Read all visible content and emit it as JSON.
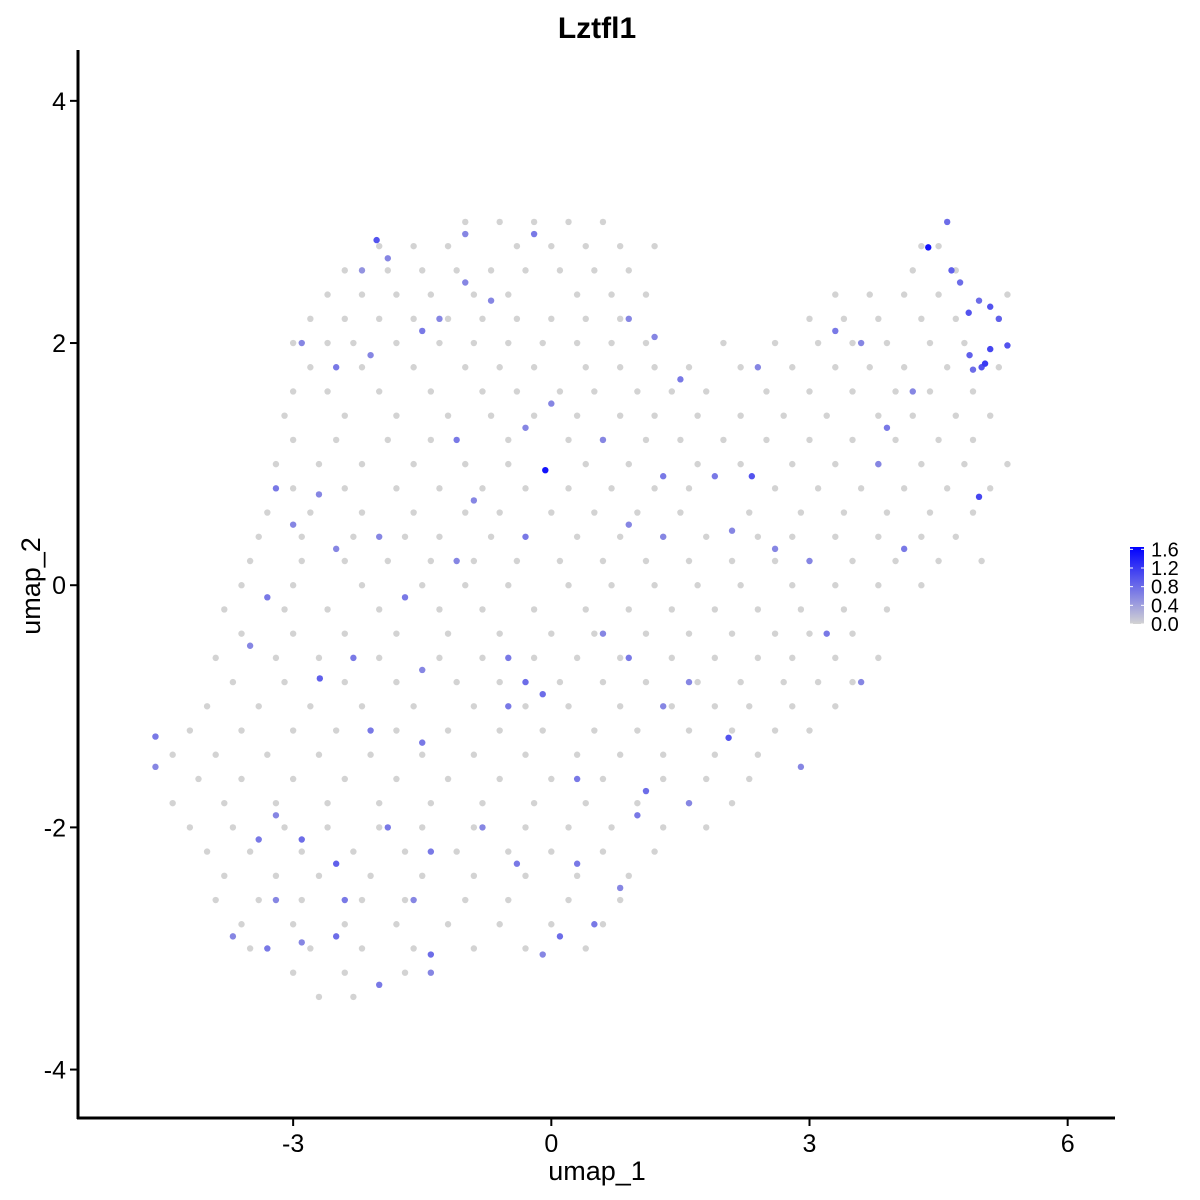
{
  "chart_data": {
    "type": "scatter",
    "title": "Lztfl1",
    "xlabel": "umap_1",
    "ylabel": "umap_2",
    "xlim": [
      -5.5,
      6.55
    ],
    "ylim": [
      -4.4,
      4.42
    ],
    "x_ticks": [
      -3,
      0,
      3,
      6
    ],
    "x_tick_labels": [
      "-3",
      "0",
      "3",
      "6"
    ],
    "y_ticks": [
      -4,
      -2,
      0,
      2,
      4
    ],
    "y_tick_labels": [
      "-4",
      "-2",
      "0",
      "2",
      "4"
    ],
    "grid": false,
    "colors": {
      "low": "#d3d3d3",
      "high": "#0000ff"
    },
    "legend": {
      "position": "right",
      "type": "colorbar",
      "range": [
        0,
        1.65
      ],
      "ticks": [
        0.0,
        0.4,
        0.8,
        1.2,
        1.6
      ],
      "tick_labels": [
        "0.0",
        "0.4",
        "0.8",
        "1.2",
        "1.6"
      ]
    },
    "zero_expression_rows": [
      {
        "y": 3.0,
        "x": [
          -1.0,
          -0.6,
          -0.2,
          0.2,
          0.6
        ]
      },
      {
        "y": 2.8,
        "x": [
          -2.0,
          -1.6,
          -1.2,
          -0.4,
          0.0,
          0.4,
          0.8,
          1.2,
          4.3,
          4.5
        ]
      },
      {
        "y": 2.6,
        "x": [
          -2.4,
          -1.9,
          -1.5,
          -1.1,
          -0.7,
          -0.3,
          0.1,
          0.5,
          0.9,
          4.2,
          4.7
        ]
      },
      {
        "y": 2.4,
        "x": [
          -2.6,
          -2.2,
          -1.8,
          -1.4,
          -0.9,
          -0.5,
          0.3,
          0.7,
          1.1,
          3.3,
          3.7,
          4.1,
          4.5,
          5.3
        ]
      },
      {
        "y": 2.2,
        "x": [
          -2.8,
          -2.4,
          -2.0,
          -1.6,
          -1.2,
          -0.8,
          -0.4,
          0.0,
          0.4,
          0.8,
          3.0,
          3.4,
          3.8,
          4.3,
          4.7,
          5.2
        ]
      },
      {
        "y": 2.0,
        "x": [
          -3.0,
          -2.6,
          -2.3,
          -1.8,
          -1.3,
          -0.9,
          -0.5,
          -0.1,
          0.3,
          0.7,
          1.1,
          2.0,
          2.6,
          3.1,
          3.5,
          3.9,
          4.4,
          4.8
        ]
      },
      {
        "y": 1.8,
        "x": [
          -2.8,
          -2.2,
          -1.6,
          -1.0,
          -0.6,
          -0.2,
          0.4,
          0.8,
          1.2,
          1.6,
          2.2,
          2.8,
          3.3,
          3.7,
          4.1,
          4.6,
          5.2
        ]
      },
      {
        "y": 1.6,
        "x": [
          -3.0,
          -2.6,
          -2.0,
          -1.4,
          -0.8,
          -0.4,
          0.1,
          0.5,
          1.0,
          1.4,
          1.8,
          2.5,
          3.0,
          3.5,
          4.0,
          4.4,
          4.9
        ]
      },
      {
        "y": 1.4,
        "x": [
          -3.1,
          -2.4,
          -1.8,
          -1.2,
          -0.7,
          -0.2,
          0.3,
          0.8,
          1.2,
          1.7,
          2.2,
          2.7,
          3.2,
          3.8,
          4.2,
          4.7,
          5.1
        ]
      },
      {
        "y": 1.2,
        "x": [
          -3.0,
          -2.5,
          -1.9,
          -1.4,
          -0.5,
          0.2,
          0.6,
          1.1,
          1.5,
          2.0,
          2.5,
          3.0,
          3.5,
          4.0,
          4.5,
          4.9
        ]
      },
      {
        "y": 1.0,
        "x": [
          -3.2,
          -2.7,
          -2.2,
          -1.6,
          -1.0,
          -0.5,
          0.4,
          0.9,
          1.7,
          2.2,
          2.8,
          3.3,
          3.8,
          4.3,
          4.8,
          5.3
        ]
      },
      {
        "y": 0.8,
        "x": [
          -3.0,
          -2.4,
          -1.8,
          -1.3,
          -0.8,
          -0.3,
          0.2,
          0.7,
          1.2,
          1.6,
          2.6,
          3.1,
          3.6,
          4.1,
          4.6,
          5.1
        ]
      },
      {
        "y": 0.6,
        "x": [
          -3.3,
          -2.8,
          -2.2,
          -1.6,
          -1.0,
          -0.6,
          0.0,
          0.5,
          1.0,
          1.5,
          2.3,
          2.9,
          3.4,
          3.9,
          4.4,
          4.9
        ]
      },
      {
        "y": 0.4,
        "x": [
          -3.4,
          -2.9,
          -2.3,
          -1.7,
          -1.3,
          -0.7,
          0.3,
          0.8,
          1.3,
          1.8,
          2.4,
          2.8,
          3.3,
          3.8,
          4.3,
          4.7
        ]
      },
      {
        "y": 0.2,
        "x": [
          -3.5,
          -2.9,
          -2.4,
          -1.9,
          -1.4,
          -0.9,
          -0.4,
          0.1,
          0.6,
          1.1,
          1.6,
          2.1,
          2.6,
          3.5,
          4.0,
          4.5,
          5.0
        ]
      },
      {
        "y": 0.0,
        "x": [
          -3.6,
          -3.0,
          -2.2,
          -1.5,
          -1.0,
          -0.5,
          0.2,
          0.7,
          1.2,
          1.7,
          2.2,
          2.8,
          3.3,
          3.8,
          4.3
        ]
      },
      {
        "y": -0.2,
        "x": [
          -3.8,
          -3.1,
          -2.6,
          -2.0,
          -1.3,
          -0.8,
          -0.2,
          0.4,
          0.9,
          1.4,
          1.9,
          2.4,
          2.9,
          3.4,
          3.9
        ]
      },
      {
        "y": -0.4,
        "x": [
          -3.6,
          -3.0,
          -2.4,
          -1.8,
          -1.2,
          -0.6,
          0.0,
          0.5,
          1.1,
          1.6,
          2.1,
          2.6,
          3.0,
          3.5
        ]
      },
      {
        "y": -0.6,
        "x": [
          -3.9,
          -3.2,
          -2.7,
          -2.0,
          -1.3,
          -0.8,
          -0.2,
          0.3,
          0.8,
          1.4,
          1.9,
          2.4,
          2.8,
          3.3,
          3.8
        ]
      },
      {
        "y": -0.8,
        "x": [
          -3.7,
          -3.1,
          -2.4,
          -1.8,
          -1.1,
          -0.6,
          0.1,
          0.6,
          1.1,
          1.7,
          2.2,
          2.7,
          3.1,
          3.5
        ]
      },
      {
        "y": -1.0,
        "x": [
          -4.0,
          -3.4,
          -2.8,
          -2.2,
          -1.6,
          -0.9,
          -0.3,
          0.2,
          0.8,
          1.4,
          1.9,
          2.3,
          2.8,
          3.3
        ]
      },
      {
        "y": -1.2,
        "x": [
          -4.2,
          -3.6,
          -3.0,
          -2.5,
          -1.8,
          -1.2,
          -0.6,
          -0.1,
          0.5,
          1.0,
          1.6,
          2.1,
          2.6,
          3.0
        ]
      },
      {
        "y": -1.4,
        "x": [
          -4.4,
          -3.9,
          -3.3,
          -2.7,
          -2.1,
          -1.5,
          -0.9,
          -0.3,
          0.3,
          0.8,
          1.3,
          1.9,
          2.4
        ]
      },
      {
        "y": -1.6,
        "x": [
          -4.1,
          -3.6,
          -3.0,
          -2.4,
          -1.8,
          -1.2,
          -0.6,
          0.0,
          0.6,
          1.3,
          1.8,
          2.3
        ]
      },
      {
        "y": -1.8,
        "x": [
          -4.4,
          -3.8,
          -3.2,
          -2.6,
          -2.0,
          -1.4,
          -0.8,
          -0.2,
          0.4,
          1.0,
          1.6,
          2.1
        ]
      },
      {
        "y": -2.0,
        "x": [
          -4.2,
          -3.7,
          -3.1,
          -2.6,
          -2.0,
          -1.5,
          -0.9,
          -0.3,
          0.2,
          0.7,
          1.3,
          1.8
        ]
      },
      {
        "y": -2.2,
        "x": [
          -4.0,
          -3.5,
          -2.9,
          -2.3,
          -1.7,
          -1.1,
          -0.5,
          0.0,
          0.6,
          1.2
        ]
      },
      {
        "y": -2.4,
        "x": [
          -3.8,
          -3.2,
          -2.7,
          -2.1,
          -1.5,
          -0.9,
          -0.3,
          0.3,
          0.9
        ]
      },
      {
        "y": -2.6,
        "x": [
          -3.9,
          -3.4,
          -2.9,
          -2.2,
          -1.7,
          -1.0,
          -0.5,
          0.2,
          0.8
        ]
      },
      {
        "y": -2.8,
        "x": [
          -3.6,
          -3.0,
          -2.4,
          -1.8,
          -1.2,
          -0.6,
          0.0,
          0.6
        ]
      },
      {
        "y": -3.0,
        "x": [
          -3.5,
          -2.8,
          -2.2,
          -1.6,
          -0.9,
          -0.3,
          0.4
        ]
      },
      {
        "y": -3.2,
        "x": [
          -3.0,
          -2.4,
          -1.7
        ]
      },
      {
        "y": -3.4,
        "x": [
          -2.7,
          -2.3
        ]
      }
    ],
    "expressing_points": [
      [
        4.38,
        2.79,
        1.5
      ],
      [
        -0.07,
        0.95,
        1.5
      ],
      [
        -2.03,
        2.85,
        1.0
      ],
      [
        -2.69,
        -0.77,
        0.9
      ],
      [
        2.33,
        0.9,
        1.0
      ],
      [
        2.06,
        -1.26,
        1.0
      ],
      [
        4.97,
        0.73,
        1.1
      ],
      [
        5.04,
        1.83,
        1.2
      ],
      [
        4.6,
        3.0,
        0.8
      ],
      [
        4.65,
        2.6,
        0.9
      ],
      [
        4.75,
        2.5,
        0.8
      ],
      [
        4.85,
        2.25,
        1.0
      ],
      [
        4.97,
        2.35,
        0.8
      ],
      [
        5.1,
        2.3,
        1.0
      ],
      [
        5.2,
        2.2,
        0.9
      ],
      [
        5.3,
        1.98,
        1.0
      ],
      [
        4.86,
        1.9,
        0.9
      ],
      [
        5.1,
        1.95,
        1.1
      ],
      [
        5.0,
        1.8,
        1.0
      ],
      [
        4.9,
        1.78,
        0.8
      ],
      [
        -0.2,
        2.9,
        0.7
      ],
      [
        -1.0,
        2.9,
        0.6
      ],
      [
        -1.9,
        2.7,
        0.6
      ],
      [
        -2.2,
        2.6,
        0.5
      ],
      [
        -1.0,
        2.5,
        0.6
      ],
      [
        0.9,
        2.2,
        0.6
      ],
      [
        1.2,
        2.05,
        0.6
      ],
      [
        -2.9,
        2.0,
        0.6
      ],
      [
        -2.5,
        1.8,
        0.7
      ],
      [
        -1.5,
        2.1,
        0.7
      ],
      [
        -2.1,
        1.9,
        0.6
      ],
      [
        -1.1,
        1.2,
        0.7
      ],
      [
        0.0,
        1.5,
        0.6
      ],
      [
        1.3,
        0.9,
        0.7
      ],
      [
        1.5,
        1.7,
        0.7
      ],
      [
        2.4,
        1.8,
        0.6
      ],
      [
        3.3,
        2.1,
        0.7
      ],
      [
        3.6,
        2.0,
        0.6
      ],
      [
        3.9,
        1.3,
        0.7
      ],
      [
        -3.2,
        0.8,
        0.7
      ],
      [
        -3.0,
        0.5,
        0.6
      ],
      [
        -2.7,
        0.75,
        0.6
      ],
      [
        -2.0,
        0.4,
        0.6
      ],
      [
        -1.1,
        0.2,
        0.6
      ],
      [
        -0.3,
        0.4,
        0.7
      ],
      [
        0.9,
        0.5,
        0.6
      ],
      [
        1.3,
        0.4,
        0.6
      ],
      [
        1.9,
        0.9,
        0.7
      ],
      [
        3.0,
        0.2,
        0.6
      ],
      [
        -3.5,
        -0.5,
        0.6
      ],
      [
        -3.3,
        -0.1,
        0.7
      ],
      [
        -2.5,
        0.3,
        0.6
      ],
      [
        -2.3,
        -0.6,
        0.7
      ],
      [
        -1.7,
        -0.1,
        0.7
      ],
      [
        -1.5,
        -0.7,
        0.6
      ],
      [
        -0.5,
        -0.6,
        0.7
      ],
      [
        -0.3,
        -0.8,
        0.8
      ],
      [
        -0.1,
        -0.9,
        0.8
      ],
      [
        0.6,
        -0.4,
        0.6
      ],
      [
        0.9,
        -0.6,
        0.7
      ],
      [
        1.6,
        -0.8,
        0.6
      ],
      [
        1.3,
        -1.0,
        0.6
      ],
      [
        -2.1,
        -1.2,
        0.7
      ],
      [
        -1.5,
        -1.3,
        0.7
      ],
      [
        -0.5,
        -1.0,
        0.7
      ],
      [
        0.3,
        -1.6,
        0.7
      ],
      [
        1.1,
        -1.7,
        0.8
      ],
      [
        1.6,
        -1.8,
        0.6
      ],
      [
        2.9,
        -1.5,
        0.6
      ],
      [
        3.2,
        -0.4,
        0.7
      ],
      [
        3.6,
        -0.8,
        0.6
      ],
      [
        -4.6,
        -1.25,
        0.7
      ],
      [
        -4.6,
        -1.5,
        0.6
      ],
      [
        -3.2,
        -1.9,
        0.6
      ],
      [
        -3.4,
        -2.1,
        0.7
      ],
      [
        -2.9,
        -2.1,
        0.8
      ],
      [
        -2.5,
        -2.3,
        0.9
      ],
      [
        -2.4,
        -2.6,
        0.7
      ],
      [
        -1.9,
        -2.0,
        0.7
      ],
      [
        -1.6,
        -2.6,
        0.6
      ],
      [
        -1.4,
        -2.2,
        0.7
      ],
      [
        -0.8,
        -2.0,
        0.6
      ],
      [
        -0.4,
        -2.3,
        0.7
      ],
      [
        0.3,
        -2.3,
        0.7
      ],
      [
        0.5,
        -2.8,
        0.7
      ],
      [
        0.1,
        -2.9,
        0.8
      ],
      [
        0.8,
        -2.5,
        0.6
      ],
      [
        -3.3,
        -3.0,
        0.7
      ],
      [
        -2.9,
        -2.95,
        0.6
      ],
      [
        -2.5,
        -2.9,
        0.8
      ],
      [
        -2.0,
        -3.3,
        0.7
      ],
      [
        -1.4,
        -3.05,
        0.8
      ],
      [
        -1.4,
        -3.2,
        0.6
      ],
      [
        -3.7,
        -2.9,
        0.6
      ],
      [
        -3.2,
        -2.6,
        0.6
      ],
      [
        -0.1,
        -3.05,
        0.6
      ],
      [
        1.0,
        -1.9,
        0.7
      ],
      [
        2.1,
        0.45,
        0.6
      ],
      [
        2.6,
        0.3,
        0.6
      ],
      [
        4.1,
        0.3,
        0.7
      ],
      [
        4.2,
        1.6,
        0.6
      ],
      [
        3.8,
        1.0,
        0.6
      ],
      [
        -0.3,
        1.3,
        0.6
      ],
      [
        -0.9,
        0.7,
        0.6
      ],
      [
        0.6,
        1.2,
        0.6
      ],
      [
        -1.3,
        2.2,
        0.6
      ],
      [
        -0.7,
        2.35,
        0.6
      ]
    ]
  }
}
